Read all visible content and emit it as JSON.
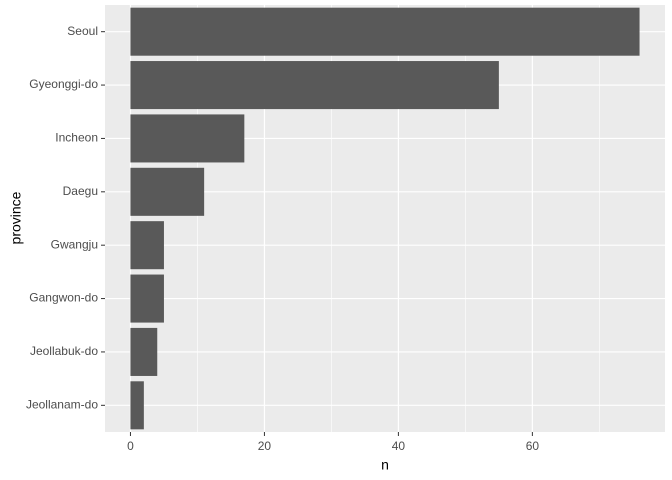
{
  "chart_data": {
    "type": "bar",
    "orientation": "horizontal",
    "categories": [
      "Seoul",
      "Gyeonggi-do",
      "Incheon",
      "Daegu",
      "Gwangju",
      "Gangwon-do",
      "Jeollabuk-do",
      "Jeollanam-do"
    ],
    "values": [
      76,
      55,
      17,
      11,
      5,
      5,
      4,
      2
    ],
    "color": "#595959",
    "x_label": "n",
    "y_label": "province",
    "xlim": [
      -3.8,
      79.8
    ],
    "xticks": [
      0,
      20,
      40,
      60
    ],
    "x_minor_ticks": [
      10,
      30,
      50,
      70
    ],
    "grid": true
  }
}
